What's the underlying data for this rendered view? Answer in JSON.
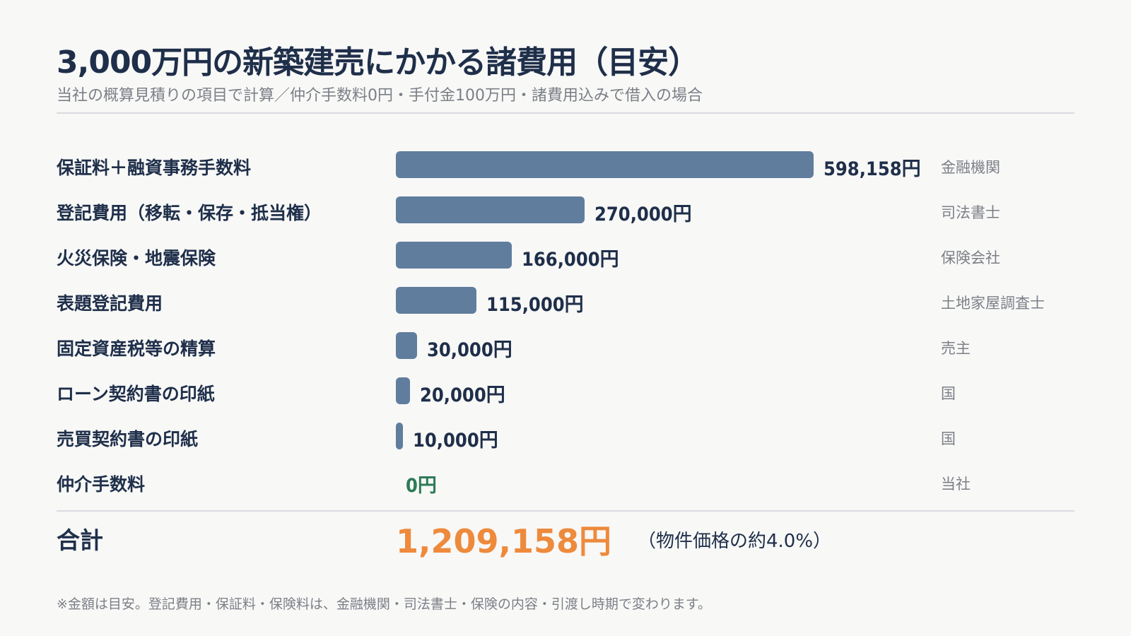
{
  "header": {
    "title": "3,000万円の新築建売にかかる諸費用（目安）",
    "subtitle": "当社の概算見積りの項目で計算／仲介手数料0円・手付金100万円・諸費用込みで借入の場合"
  },
  "chart_data": {
    "type": "bar",
    "orientation": "horizontal",
    "categories": [
      "保証料＋融資事務手数料",
      "登記費用（移転・保存・抵当権）",
      "火災保険・地震保険",
      "表題登記費用",
      "固定資産税等の精算",
      "ローン契約書の印紙",
      "売買契約書の印紙",
      "仲介手数料"
    ],
    "values": [
      598158,
      270000,
      166000,
      115000,
      30000,
      20000,
      10000,
      0
    ],
    "value_labels": [
      "598,158円",
      "270,000円",
      "166,000円",
      "115,000円",
      "30,000円",
      "20,000円",
      "10,000円",
      "0円"
    ],
    "payers": [
      "金融機関",
      "司法書士",
      "保険会社",
      "土地家屋調査士",
      "売主",
      "国",
      "国",
      "当社"
    ],
    "bar_color": "#607d9e",
    "zero_color": "#2d7a57"
  },
  "total": {
    "label": "合計",
    "value": "1,209,158円",
    "note": "（物件価格の約4.0%）",
    "color": "#ee8a3c"
  },
  "footnote": "※金額は目安。登記費用・保証料・保険料は、金融機関・司法書士・保険の内容・引渡し時期で変わります。"
}
